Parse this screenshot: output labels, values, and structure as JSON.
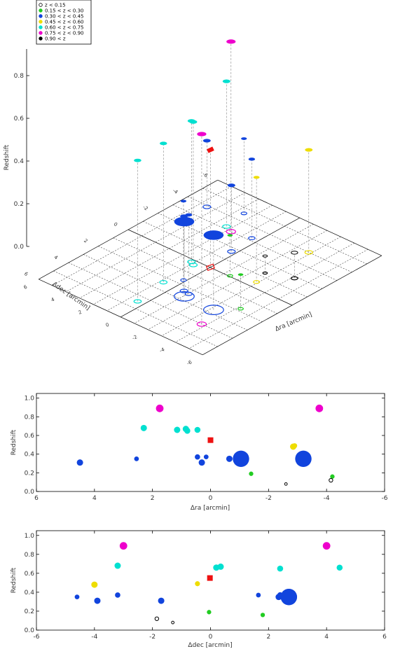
{
  "legend": {
    "entries": [
      {
        "label": "z < 0.15",
        "color": "#000000",
        "hollow": true
      },
      {
        "label": "0.15 < z < 0.30",
        "color": "#22cc22",
        "hollow": false
      },
      {
        "label": "0.30 < z < 0.45",
        "color": "#1144dd",
        "hollow": false
      },
      {
        "label": "0.45 < z < 0.60",
        "color": "#eedd00",
        "hollow": false
      },
      {
        "label": "0.60 < z < 0.75",
        "color": "#00e0d0",
        "hollow": false
      },
      {
        "label": "0.75 < z < 0.90",
        "color": "#ee00cc",
        "hollow": false
      },
      {
        "label": "0.90 < z",
        "color": "#000000",
        "hollow": false
      }
    ]
  },
  "chart_data": [
    {
      "type": "scatter",
      "view": "3d-perspective",
      "ylabel": "Redshift",
      "xlabel": "Δra [arcmin]",
      "zlabel": "Δdec [arcmin]",
      "zticks": [
        "0.0",
        "0.2",
        "0.4",
        "0.6",
        "0.8"
      ],
      "ra_ticks": [
        "6",
        "4",
        "2",
        "0",
        "-2",
        "-4",
        "-6"
      ],
      "dec_ticks": [
        "-6",
        "-4",
        "-2",
        "0",
        "2",
        "4",
        "6"
      ],
      "ra_range": [
        6,
        -6
      ],
      "dec_range": [
        -6,
        6
      ],
      "z_range": [
        0,
        0.95
      ]
    },
    {
      "type": "scatter",
      "xlabel": "Δra [arcmin]",
      "ylabel": "Redshift",
      "xlim": [
        6,
        -6
      ],
      "ylim": [
        0,
        1.05
      ],
      "xticks": [
        "6",
        "4",
        "2",
        "0",
        "-2",
        "-4",
        "-6"
      ],
      "yticks": [
        "0.0",
        "0.2",
        "0.4",
        "0.6",
        "0.8",
        "1.0"
      ]
    },
    {
      "type": "scatter",
      "xlabel": "Δdec [arcmin]",
      "ylabel": "Redshift",
      "xlim": [
        -6,
        6
      ],
      "ylim": [
        0,
        1.05
      ],
      "xticks": [
        "-6",
        "-4",
        "-2",
        "0",
        "2",
        "4",
        "6"
      ],
      "yticks": [
        "0.0",
        "0.2",
        "0.4",
        "0.6",
        "0.8",
        "1.0"
      ]
    }
  ],
  "points": [
    {
      "ra": 1.75,
      "dec": -3.0,
      "z": 0.89,
      "size": 1.2,
      "cls": 5
    },
    {
      "ra": -3.75,
      "dec": 4.0,
      "z": 0.89,
      "size": 1.2,
      "cls": 5
    },
    {
      "ra": 2.3,
      "dec": -3.2,
      "z": 0.68,
      "size": 1.0,
      "cls": 4
    },
    {
      "ra": 1.15,
      "dec": 0.2,
      "z": 0.66,
      "size": 1.0,
      "cls": 4
    },
    {
      "ra": 0.85,
      "dec": 0.35,
      "z": 0.67,
      "size": 1.0,
      "cls": 4
    },
    {
      "ra": 0.8,
      "dec": 2.4,
      "z": 0.65,
      "size": 0.95,
      "cls": 4
    },
    {
      "ra": 0.45,
      "dec": 4.45,
      "z": 0.66,
      "size": 0.95,
      "cls": 4
    },
    {
      "ra": 0.0,
      "dec": -0.02,
      "z": 0.55,
      "size": 1.0,
      "cls": 6,
      "marker": "square",
      "color": "#ee1111"
    },
    {
      "ra": -2.85,
      "dec": -4.0,
      "z": 0.48,
      "size": 1.0,
      "cls": 3
    },
    {
      "ra": -2.9,
      "dec": -0.45,
      "z": 0.49,
      "size": 0.8,
      "cls": 3
    },
    {
      "ra": 4.5,
      "dec": -3.9,
      "z": 0.31,
      "size": 1.0,
      "cls": 2
    },
    {
      "ra": 2.55,
      "dec": -4.6,
      "z": 0.35,
      "size": 0.75,
      "cls": 2
    },
    {
      "ra": 0.45,
      "dec": -3.2,
      "z": 0.37,
      "size": 0.85,
      "cls": 2
    },
    {
      "ra": 0.3,
      "dec": -1.7,
      "z": 0.31,
      "size": 1.0,
      "cls": 2
    },
    {
      "ra": 0.15,
      "dec": 1.65,
      "z": 0.37,
      "size": 0.75,
      "cls": 2
    },
    {
      "ra": -0.65,
      "dec": 2.35,
      "z": 0.35,
      "size": 1.0,
      "cls": 2
    },
    {
      "ra": -1.05,
      "dec": 2.7,
      "z": 0.35,
      "size": 2.6,
      "cls": 2
    },
    {
      "ra": -1.05,
      "dec": 2.4,
      "z": 0.37,
      "size": 0.9,
      "cls": 2
    },
    {
      "ra": -3.2,
      "dec": 2.7,
      "z": 0.35,
      "size": 2.6,
      "cls": 2
    },
    {
      "ra": -1.4,
      "dec": -0.05,
      "z": 0.19,
      "size": 0.7,
      "cls": 1
    },
    {
      "ra": -4.2,
      "dec": 1.8,
      "z": 0.16,
      "size": 0.7,
      "cls": 1
    },
    {
      "ra": -2.6,
      "dec": -1.3,
      "z": 0.08,
      "size": 0.6,
      "cls": 0
    },
    {
      "ra": -4.15,
      "dec": -1.85,
      "z": 0.12,
      "size": 0.85,
      "cls": 0
    }
  ]
}
